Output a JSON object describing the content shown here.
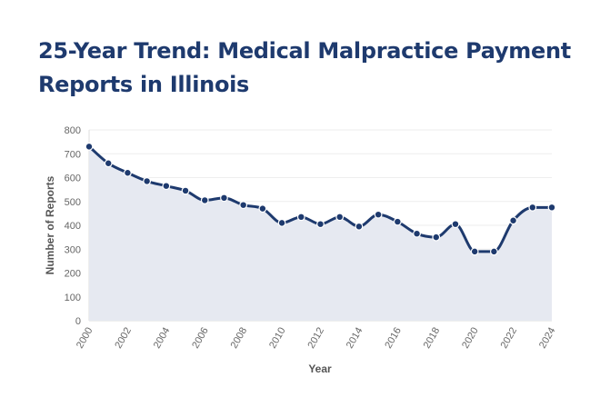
{
  "chart_data": {
    "type": "area",
    "title": "25-Year Trend: Medical Malpractice Payment Reports in Illinois",
    "xlabel": "Year",
    "ylabel": "Number of Reports",
    "ylim": [
      0,
      800
    ],
    "yticks": [
      0,
      100,
      200,
      300,
      400,
      500,
      600,
      700,
      800
    ],
    "xticks": [
      "2000",
      "2002",
      "2004",
      "2006",
      "2008",
      "2010",
      "2012",
      "2014",
      "2016",
      "2018",
      "2020",
      "2022",
      "2024"
    ],
    "x": [
      2000,
      2001,
      2002,
      2003,
      2004,
      2005,
      2006,
      2007,
      2008,
      2009,
      2010,
      2011,
      2012,
      2013,
      2014,
      2015,
      2016,
      2017,
      2018,
      2019,
      2020,
      2021,
      2022,
      2023,
      2024
    ],
    "values": [
      730,
      660,
      620,
      585,
      565,
      545,
      505,
      515,
      485,
      470,
      410,
      435,
      405,
      435,
      395,
      445,
      415,
      365,
      350,
      405,
      290,
      290,
      420,
      475,
      475
    ],
    "grid": true,
    "legend": "none",
    "colors": {
      "line": "#1e3a6e",
      "fill": "#e6e9f1",
      "title": "#1e3a6e"
    }
  }
}
